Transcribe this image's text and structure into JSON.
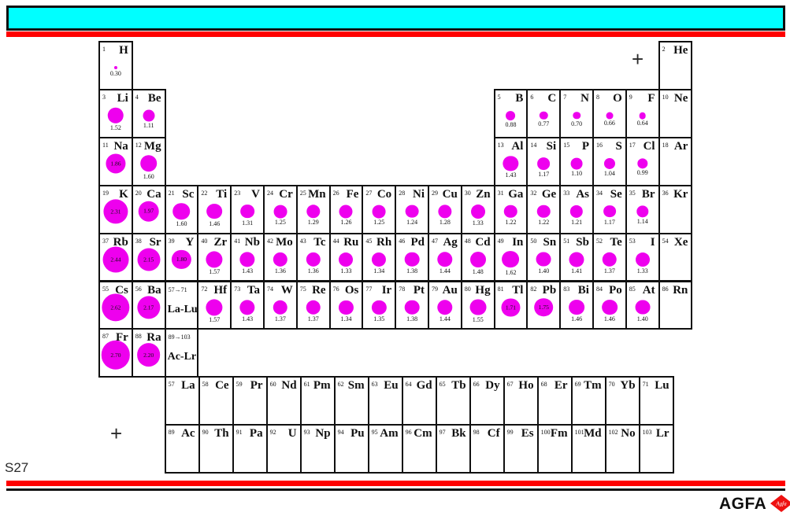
{
  "slide": {
    "label": "S27",
    "plus_top": "+",
    "plus_bottom": "+",
    "logo_text": "AGFA",
    "logo_mark_text": "Agfa",
    "colors": {
      "banner_fill": "#00ffff",
      "rule_red": "#ff0000",
      "bubble_magenta": "#ee00ee",
      "line_black": "#101010"
    }
  },
  "periodic_table": {
    "type": "bubble",
    "bubble_encodes": "atomic radius",
    "elements": [
      {
        "n": 1,
        "sym": "H",
        "period": 1,
        "group": 1,
        "radius": "0.30",
        "label_inside": false
      },
      {
        "n": 2,
        "sym": "He",
        "period": 1,
        "group": 18,
        "radius": null,
        "label_inside": false
      },
      {
        "n": 3,
        "sym": "Li",
        "period": 2,
        "group": 1,
        "radius": "1.52",
        "label_inside": false
      },
      {
        "n": 4,
        "sym": "Be",
        "period": 2,
        "group": 2,
        "radius": "1.11",
        "label_inside": false
      },
      {
        "n": 5,
        "sym": "B",
        "period": 2,
        "group": 13,
        "radius": "0.88",
        "label_inside": false
      },
      {
        "n": 6,
        "sym": "C",
        "period": 2,
        "group": 14,
        "radius": "0.77",
        "label_inside": false
      },
      {
        "n": 7,
        "sym": "N",
        "period": 2,
        "group": 15,
        "radius": "0.70",
        "label_inside": false
      },
      {
        "n": 8,
        "sym": "O",
        "period": 2,
        "group": 16,
        "radius": "0.66",
        "label_inside": false
      },
      {
        "n": 9,
        "sym": "F",
        "period": 2,
        "group": 17,
        "radius": "0.64",
        "label_inside": false
      },
      {
        "n": 10,
        "sym": "Ne",
        "period": 2,
        "group": 18,
        "radius": null,
        "label_inside": false
      },
      {
        "n": 11,
        "sym": "Na",
        "period": 3,
        "group": 1,
        "radius": "1.86",
        "label_inside": true
      },
      {
        "n": 12,
        "sym": "Mg",
        "period": 3,
        "group": 2,
        "radius": "1.60",
        "label_inside": false
      },
      {
        "n": 13,
        "sym": "Al",
        "period": 3,
        "group": 13,
        "radius": "1.43",
        "label_inside": false
      },
      {
        "n": 14,
        "sym": "Si",
        "period": 3,
        "group": 14,
        "radius": "1.17",
        "label_inside": false
      },
      {
        "n": 15,
        "sym": "P",
        "period": 3,
        "group": 15,
        "radius": "1.10",
        "label_inside": false
      },
      {
        "n": 16,
        "sym": "S",
        "period": 3,
        "group": 16,
        "radius": "1.04",
        "label_inside": false
      },
      {
        "n": 17,
        "sym": "Cl",
        "period": 3,
        "group": 17,
        "radius": "0.99",
        "label_inside": false
      },
      {
        "n": 18,
        "sym": "Ar",
        "period": 3,
        "group": 18,
        "radius": null,
        "label_inside": false
      },
      {
        "n": 19,
        "sym": "K",
        "period": 4,
        "group": 1,
        "radius": "2.31",
        "label_inside": true
      },
      {
        "n": 20,
        "sym": "Ca",
        "period": 4,
        "group": 2,
        "radius": "1.97",
        "label_inside": true
      },
      {
        "n": 21,
        "sym": "Sc",
        "period": 4,
        "group": 3,
        "radius": "1.60",
        "label_inside": false
      },
      {
        "n": 22,
        "sym": "Ti",
        "period": 4,
        "group": 4,
        "radius": "1.46",
        "label_inside": false
      },
      {
        "n": 23,
        "sym": "V",
        "period": 4,
        "group": 5,
        "radius": "1.31",
        "label_inside": false
      },
      {
        "n": 24,
        "sym": "Cr",
        "period": 4,
        "group": 6,
        "radius": "1.25",
        "label_inside": false
      },
      {
        "n": 25,
        "sym": "Mn",
        "period": 4,
        "group": 7,
        "radius": "1.29",
        "label_inside": false
      },
      {
        "n": 26,
        "sym": "Fe",
        "period": 4,
        "group": 8,
        "radius": "1.26",
        "label_inside": false
      },
      {
        "n": 27,
        "sym": "Co",
        "period": 4,
        "group": 9,
        "radius": "1.25",
        "label_inside": false
      },
      {
        "n": 28,
        "sym": "Ni",
        "period": 4,
        "group": 10,
        "radius": "1.24",
        "label_inside": false
      },
      {
        "n": 29,
        "sym": "Cu",
        "period": 4,
        "group": 11,
        "radius": "1.28",
        "label_inside": false
      },
      {
        "n": 30,
        "sym": "Zn",
        "period": 4,
        "group": 12,
        "radius": "1.33",
        "label_inside": false
      },
      {
        "n": 31,
        "sym": "Ga",
        "period": 4,
        "group": 13,
        "radius": "1.22",
        "label_inside": false
      },
      {
        "n": 32,
        "sym": "Ge",
        "period": 4,
        "group": 14,
        "radius": "1.22",
        "label_inside": false
      },
      {
        "n": 33,
        "sym": "As",
        "period": 4,
        "group": 15,
        "radius": "1.21",
        "label_inside": false
      },
      {
        "n": 34,
        "sym": "Se",
        "period": 4,
        "group": 16,
        "radius": "1.17",
        "label_inside": false
      },
      {
        "n": 35,
        "sym": "Br",
        "period": 4,
        "group": 17,
        "radius": "1.14",
        "label_inside": false
      },
      {
        "n": 36,
        "sym": "Kr",
        "period": 4,
        "group": 18,
        "radius": null,
        "label_inside": false
      },
      {
        "n": 37,
        "sym": "Rb",
        "period": 5,
        "group": 1,
        "radius": "2.44",
        "label_inside": true
      },
      {
        "n": 38,
        "sym": "Sr",
        "period": 5,
        "group": 2,
        "radius": "2.15",
        "label_inside": true
      },
      {
        "n": 39,
        "sym": "Y",
        "period": 5,
        "group": 3,
        "radius": "1.80",
        "label_inside": true
      },
      {
        "n": 40,
        "sym": "Zr",
        "period": 5,
        "group": 4,
        "radius": "1.57",
        "label_inside": false
      },
      {
        "n": 41,
        "sym": "Nb",
        "period": 5,
        "group": 5,
        "radius": "1.43",
        "label_inside": false
      },
      {
        "n": 42,
        "sym": "Mo",
        "period": 5,
        "group": 6,
        "radius": "1.36",
        "label_inside": false
      },
      {
        "n": 43,
        "sym": "Tc",
        "period": 5,
        "group": 7,
        "radius": "1.36",
        "label_inside": false
      },
      {
        "n": 44,
        "sym": "Ru",
        "period": 5,
        "group": 8,
        "radius": "1.33",
        "label_inside": false
      },
      {
        "n": 45,
        "sym": "Rh",
        "period": 5,
        "group": 9,
        "radius": "1.34",
        "label_inside": false
      },
      {
        "n": 46,
        "sym": "Pd",
        "period": 5,
        "group": 10,
        "radius": "1.38",
        "label_inside": false
      },
      {
        "n": 47,
        "sym": "Ag",
        "period": 5,
        "group": 11,
        "radius": "1.44",
        "label_inside": false
      },
      {
        "n": 48,
        "sym": "Cd",
        "period": 5,
        "group": 12,
        "radius": "1.48",
        "label_inside": false
      },
      {
        "n": 49,
        "sym": "In",
        "period": 5,
        "group": 13,
        "radius": "1.62",
        "label_inside": false
      },
      {
        "n": 50,
        "sym": "Sn",
        "period": 5,
        "group": 14,
        "radius": "1.40",
        "label_inside": false
      },
      {
        "n": 51,
        "sym": "Sb",
        "period": 5,
        "group": 15,
        "radius": "1.41",
        "label_inside": false
      },
      {
        "n": 52,
        "sym": "Te",
        "period": 5,
        "group": 16,
        "radius": "1.37",
        "label_inside": false
      },
      {
        "n": 53,
        "sym": "I",
        "period": 5,
        "group": 17,
        "radius": "1.33",
        "label_inside": false
      },
      {
        "n": 54,
        "sym": "Xe",
        "period": 5,
        "group": 18,
        "radius": null,
        "label_inside": false
      },
      {
        "n": 55,
        "sym": "Cs",
        "period": 6,
        "group": 1,
        "radius": "2.62",
        "label_inside": true
      },
      {
        "n": 56,
        "sym": "Ba",
        "period": 6,
        "group": 2,
        "radius": "2.17",
        "label_inside": true
      },
      {
        "n": 72,
        "sym": "Hf",
        "period": 6,
        "group": 4,
        "radius": "1.57",
        "label_inside": false
      },
      {
        "n": 73,
        "sym": "Ta",
        "period": 6,
        "group": 5,
        "radius": "1.43",
        "label_inside": false
      },
      {
        "n": 74,
        "sym": "W",
        "period": 6,
        "group": 6,
        "radius": "1.37",
        "label_inside": false
      },
      {
        "n": 75,
        "sym": "Re",
        "period": 6,
        "group": 7,
        "radius": "1.37",
        "label_inside": false
      },
      {
        "n": 76,
        "sym": "Os",
        "period": 6,
        "group": 8,
        "radius": "1.34",
        "label_inside": false
      },
      {
        "n": 77,
        "sym": "Ir",
        "period": 6,
        "group": 9,
        "radius": "1.35",
        "label_inside": false
      },
      {
        "n": 78,
        "sym": "Pt",
        "period": 6,
        "group": 10,
        "radius": "1.38",
        "label_inside": false
      },
      {
        "n": 79,
        "sym": "Au",
        "period": 6,
        "group": 11,
        "radius": "1.44",
        "label_inside": false
      },
      {
        "n": 80,
        "sym": "Hg",
        "period": 6,
        "group": 12,
        "radius": "1.55",
        "label_inside": false
      },
      {
        "n": 81,
        "sym": "Tl",
        "period": 6,
        "group": 13,
        "radius": "1.71",
        "label_inside": true
      },
      {
        "n": 82,
        "sym": "Pb",
        "period": 6,
        "group": 14,
        "radius": "1.75",
        "label_inside": true
      },
      {
        "n": 83,
        "sym": "Bi",
        "period": 6,
        "group": 15,
        "radius": "1.46",
        "label_inside": false
      },
      {
        "n": 84,
        "sym": "Po",
        "period": 6,
        "group": 16,
        "radius": "1.46",
        "label_inside": false
      },
      {
        "n": 85,
        "sym": "At",
        "period": 6,
        "group": 17,
        "radius": "1.40",
        "label_inside": false
      },
      {
        "n": 86,
        "sym": "Rn",
        "period": 6,
        "group": 18,
        "radius": null,
        "label_inside": false
      },
      {
        "n": 87,
        "sym": "Fr",
        "period": 7,
        "group": 1,
        "radius": "2.70",
        "label_inside": true
      },
      {
        "n": 88,
        "sym": "Ra",
        "period": 7,
        "group": 2,
        "radius": "2.20",
        "label_inside": true
      }
    ],
    "placeholders": [
      {
        "range": "57→71",
        "label": "La-Lu",
        "period": 6,
        "group": 3
      },
      {
        "range": "89→103",
        "label": "Ac-Lr",
        "period": 7,
        "group": 3
      }
    ],
    "lanthanides": [
      {
        "n": 57,
        "sym": "La"
      },
      {
        "n": 58,
        "sym": "Ce"
      },
      {
        "n": 59,
        "sym": "Pr"
      },
      {
        "n": 60,
        "sym": "Nd"
      },
      {
        "n": 61,
        "sym": "Pm"
      },
      {
        "n": 62,
        "sym": "Sm"
      },
      {
        "n": 63,
        "sym": "Eu"
      },
      {
        "n": 64,
        "sym": "Gd"
      },
      {
        "n": 65,
        "sym": "Tb"
      },
      {
        "n": 66,
        "sym": "Dy"
      },
      {
        "n": 67,
        "sym": "Ho"
      },
      {
        "n": 68,
        "sym": "Er"
      },
      {
        "n": 69,
        "sym": "Tm"
      },
      {
        "n": 70,
        "sym": "Yb"
      },
      {
        "n": 71,
        "sym": "Lu"
      }
    ],
    "actinides": [
      {
        "n": 89,
        "sym": "Ac"
      },
      {
        "n": 90,
        "sym": "Th"
      },
      {
        "n": 91,
        "sym": "Pa"
      },
      {
        "n": 92,
        "sym": "U"
      },
      {
        "n": 93,
        "sym": "Np"
      },
      {
        "n": 94,
        "sym": "Pu"
      },
      {
        "n": 95,
        "sym": "Am"
      },
      {
        "n": 96,
        "sym": "Cm"
      },
      {
        "n": 97,
        "sym": "Bk"
      },
      {
        "n": 98,
        "sym": "Cf"
      },
      {
        "n": 99,
        "sym": "Es"
      },
      {
        "n": 100,
        "sym": "Fm"
      },
      {
        "n": 101,
        "sym": "Md"
      },
      {
        "n": 102,
        "sym": "No"
      },
      {
        "n": 103,
        "sym": "Lr"
      }
    ]
  }
}
